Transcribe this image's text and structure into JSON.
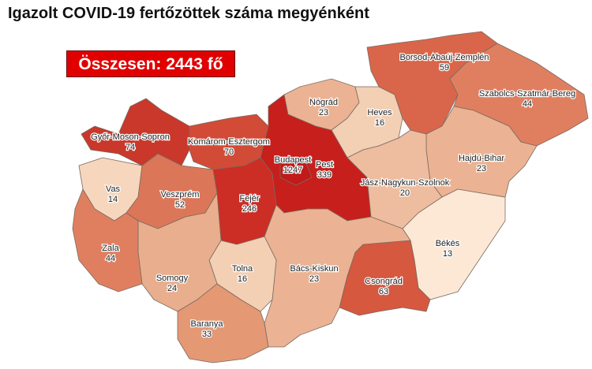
{
  "title": "Igazolt COVID-19 fertőzöttek száma megyénként",
  "total_label": "Összesen: 2443 fő",
  "counties": [
    {
      "name": "Győr-Moson-Sopron",
      "value": "74",
      "color": "#c9382b"
    },
    {
      "name": "Komárom-Esztergom",
      "value": "70",
      "color": "#d24b36"
    },
    {
      "name": "Vas",
      "value": "14",
      "color": "#f6d7bd"
    },
    {
      "name": "Veszprém",
      "value": "52",
      "color": "#dc7658"
    },
    {
      "name": "Fejér",
      "value": "246",
      "color": "#cc2d25"
    },
    {
      "name": "Pest",
      "value": "339",
      "color": "#c71f1c"
    },
    {
      "name": "Budapest",
      "value": "1247",
      "color": "#c21a1a"
    },
    {
      "name": "Nógrád",
      "value": "23",
      "color": "#ebb393"
    },
    {
      "name": "Heves",
      "value": "16",
      "color": "#f3cfb3"
    },
    {
      "name": "Borsod-Abaúj-Zemplén",
      "value": "59",
      "color": "#d9664a"
    },
    {
      "name": "Szabolcs-Szatmár-Bereg",
      "value": "44",
      "color": "#e07f60"
    },
    {
      "name": "Hajdú-Bihar",
      "value": "23",
      "color": "#ebb393"
    },
    {
      "name": "Jász-Nagykun-Szolnok",
      "value": "20",
      "color": "#eebc9e"
    },
    {
      "name": "Békés",
      "value": "13",
      "color": "#fce8d5"
    },
    {
      "name": "Csongrád",
      "value": "63",
      "color": "#d5583f"
    },
    {
      "name": "Bács-Kiskun",
      "value": "23",
      "color": "#ebb393"
    },
    {
      "name": "Tolna",
      "value": "16",
      "color": "#f3cfb3"
    },
    {
      "name": "Somogy",
      "value": "24",
      "color": "#e9ae8d"
    },
    {
      "name": "Zala",
      "value": "44",
      "color": "#e07f60"
    },
    {
      "name": "Baranya",
      "value": "33",
      "color": "#e49874"
    }
  ]
}
